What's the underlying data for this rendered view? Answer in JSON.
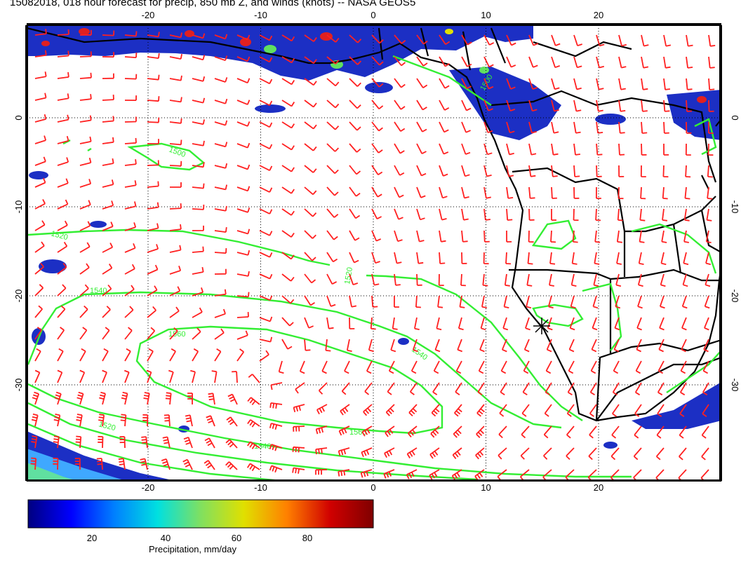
{
  "title": "15082018, 018 hour forecast for precip, 850 mb Z, and winds (knots) -- NASA GEOS5",
  "map": {
    "lon_ticks": [
      -20,
      -10,
      0,
      10,
      20
    ],
    "lat_ticks": [
      0,
      -10,
      -20,
      -30
    ],
    "contour_labels": [
      "1500",
      "1520",
      "1520",
      "1540",
      "1560",
      "1540",
      "1560",
      "1540",
      "1520",
      "1500"
    ],
    "colors": {
      "wind_barbs": "#ff2020",
      "contours": "#33ee33",
      "coast": "#000000",
      "grid": "#000000"
    }
  },
  "colorbar": {
    "label": "Precipitation, mm/day",
    "ticks": [
      "20",
      "40",
      "60",
      "80"
    ],
    "stops": [
      "#000080",
      "#0000ff",
      "#0080ff",
      "#00e0e0",
      "#80e060",
      "#e0e000",
      "#ff8000",
      "#d00000",
      "#800000"
    ]
  }
}
